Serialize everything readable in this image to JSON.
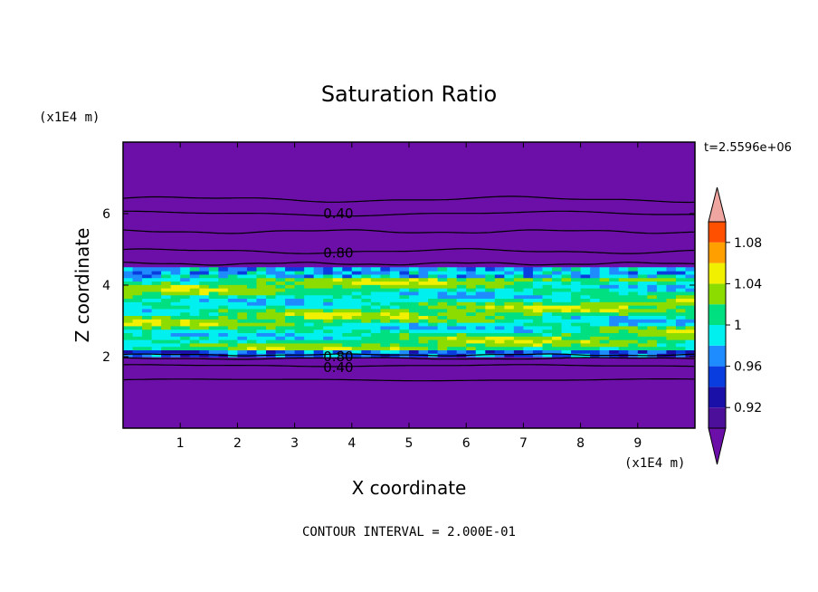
{
  "chart_data": {
    "type": "heatmap",
    "title": "Saturation Ratio",
    "xlabel": "X coordinate",
    "ylabel": "Z coordinate",
    "x_unit": "(x1E4 m)",
    "y_unit": "(x1E4 m)",
    "xlim": [
      0,
      10
    ],
    "ylim": [
      0,
      8
    ],
    "x_ticks": [
      1,
      2,
      3,
      4,
      5,
      6,
      7,
      8,
      9
    ],
    "y_ticks": [
      2,
      4,
      6
    ],
    "time_label": "t=2.5596e+06",
    "footer": "CONTOUR INTERVAL = 2.000E-01",
    "colorbar": {
      "tick_labels": [
        "0.92",
        "0.96",
        "1",
        "1.04",
        "1.08"
      ],
      "tick_values": [
        0.92,
        0.96,
        1.0,
        1.04,
        1.08
      ],
      "levels": [
        0.9,
        0.92,
        0.94,
        0.96,
        0.98,
        1.0,
        1.02,
        1.04,
        1.06,
        1.08,
        1.1
      ],
      "colors": [
        "#4b0f9a",
        "#1a10a8",
        "#0a3de0",
        "#1e8cff",
        "#00f0f0",
        "#00e080",
        "#8cdc00",
        "#f0f000",
        "#ffa000",
        "#ff5000",
        "#f02828"
      ],
      "under_color": "#6c0fa8",
      "over_color": "#f0a6a0",
      "extend": "both"
    },
    "contour_labels": [
      {
        "text": "0.40",
        "x": 3.5,
        "y": 6.0
      },
      {
        "text": "0.80",
        "x": 3.5,
        "y": 4.9
      },
      {
        "text": "0.80",
        "x": 3.5,
        "y": 2.0
      },
      {
        "text": "0.40",
        "x": 3.5,
        "y": 1.7
      }
    ],
    "layers": {
      "background_value": 0.5,
      "moist_band_z": [
        2.0,
        4.5
      ],
      "moist_band_mean": 1.0
    }
  }
}
